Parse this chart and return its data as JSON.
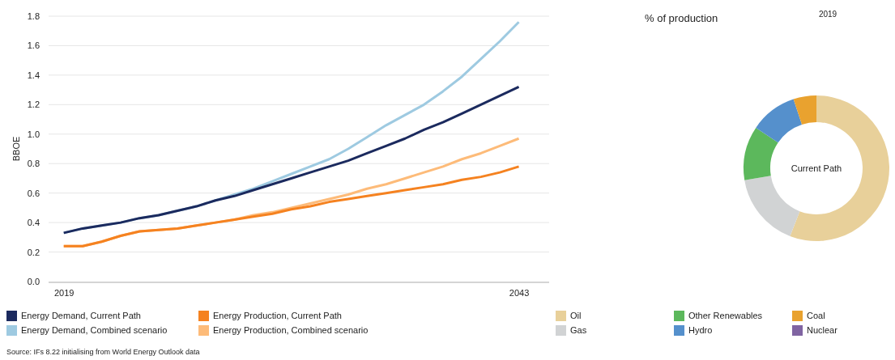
{
  "chart_data": [
    {
      "type": "line",
      "ylabel": "BBOE",
      "x": [
        2019,
        2020,
        2021,
        2022,
        2023,
        2024,
        2025,
        2026,
        2027,
        2028,
        2029,
        2030,
        2031,
        2032,
        2033,
        2034,
        2035,
        2036,
        2037,
        2038,
        2039,
        2040,
        2041,
        2042,
        2043
      ],
      "xlim": [
        2018.2,
        2044.6
      ],
      "xticks": [
        2019,
        2043
      ],
      "ylim": [
        0,
        1.8
      ],
      "yticks": [
        {
          "value": 0,
          "label": "0.0"
        },
        {
          "value": 0.2,
          "label": "0.2"
        },
        {
          "value": 0.4,
          "label": "0.4"
        },
        {
          "value": 0.6,
          "label": "0.6"
        },
        {
          "value": 0.8,
          "label": "0.8"
        },
        {
          "value": 1,
          "label": "1.0"
        },
        {
          "value": 1.2,
          "label": "1.2"
        },
        {
          "value": 1.4,
          "label": "1.4"
        },
        {
          "value": 1.6,
          "label": "1.6"
        },
        {
          "value": 1.8,
          "label": "1.8"
        }
      ],
      "grid": "y",
      "legend": "bottom",
      "marker": "none",
      "line_style": "solid",
      "series": [
        {
          "name": "Energy Demand, Current Path",
          "color": "#1b2a5e",
          "values": [
            0.33,
            0.36,
            0.38,
            0.4,
            0.43,
            0.45,
            0.48,
            0.51,
            0.55,
            0.58,
            0.62,
            0.66,
            0.7,
            0.74,
            0.78,
            0.82,
            0.87,
            0.92,
            0.97,
            1.03,
            1.08,
            1.14,
            1.2,
            1.26,
            1.32
          ]
        },
        {
          "name": "Energy Production, Current Path",
          "color": "#f58220",
          "values": [
            0.24,
            0.24,
            0.27,
            0.31,
            0.34,
            0.35,
            0.36,
            0.38,
            0.4,
            0.42,
            0.44,
            0.46,
            0.49,
            0.51,
            0.54,
            0.56,
            0.58,
            0.6,
            0.62,
            0.64,
            0.66,
            0.69,
            0.71,
            0.74,
            0.78
          ]
        },
        {
          "name": "Energy Demand, Combined scenario",
          "color": "#9ecae1",
          "values": [
            0.33,
            0.36,
            0.38,
            0.4,
            0.43,
            0.45,
            0.48,
            0.51,
            0.55,
            0.59,
            0.63,
            0.68,
            0.73,
            0.78,
            0.83,
            0.9,
            0.98,
            1.06,
            1.13,
            1.2,
            1.29,
            1.39,
            1.51,
            1.63,
            1.76
          ]
        },
        {
          "name": "Energy Production, Combined scenario",
          "color": "#fdbb79",
          "values": [
            0.24,
            0.24,
            0.27,
            0.31,
            0.34,
            0.35,
            0.36,
            0.38,
            0.4,
            0.42,
            0.45,
            0.47,
            0.5,
            0.53,
            0.56,
            0.59,
            0.63,
            0.66,
            0.7,
            0.74,
            0.78,
            0.83,
            0.87,
            0.92,
            0.97
          ]
        }
      ],
      "annotations": [
        "Source: IFs 8.22 initialising from World Energy Outlook data"
      ]
    },
    {
      "type": "donut",
      "title": "% of production",
      "subtitle": "2019",
      "legend": "bottom",
      "annotations": [
        "Current Path"
      ],
      "categories": [
        "Oil",
        "Gas",
        "Other Renewables",
        "Hydro",
        "Coal",
        "Nuclear"
      ],
      "values": [
        55.9,
        16.5,
        12,
        10.5,
        5.1,
        0
      ],
      "colors": [
        "#e8d09a",
        "#d1d3d4",
        "#5cb85c",
        "#5590cc",
        "#e9a22f",
        "#8064a2"
      ]
    }
  ]
}
